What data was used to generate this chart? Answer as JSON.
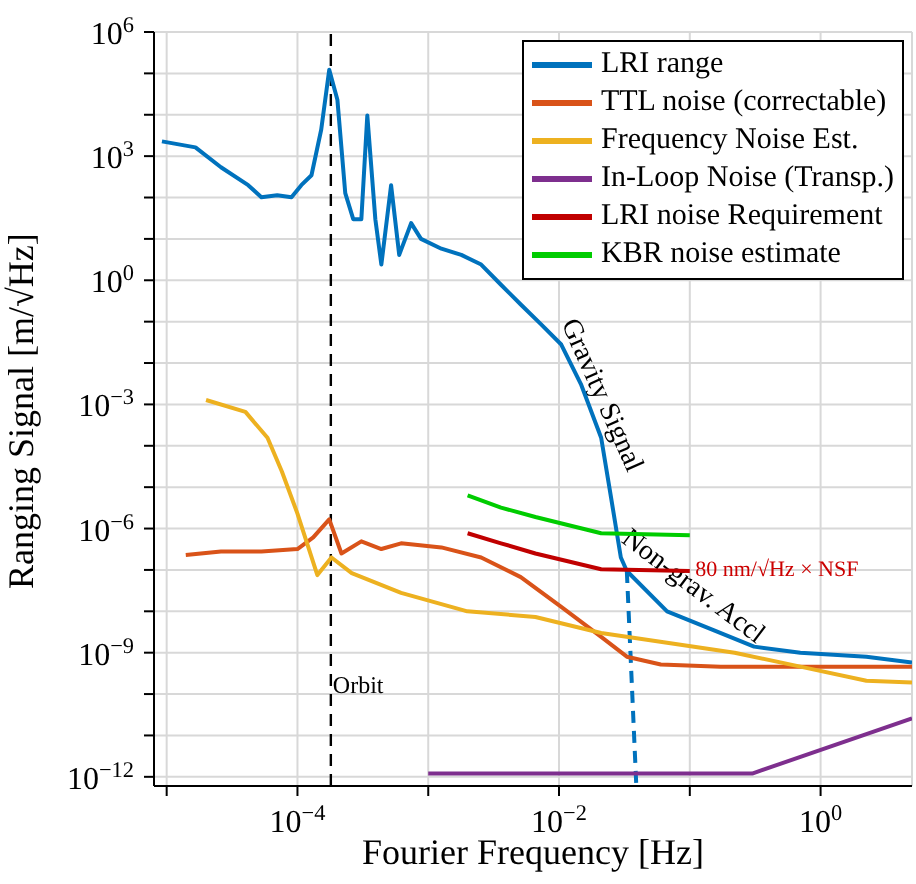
{
  "chart_data": {
    "type": "line",
    "xlabel": "Fourier Frequency [Hz]",
    "ylabel": "Ranging Signal [m/√Hz]",
    "log": "xy",
    "grid": true,
    "legend": "top right",
    "xlim": [
      8e-06,
      5
    ],
    "ylim": [
      6e-13,
      1000000
    ],
    "xticks": [
      {
        "value": 1e-05,
        "label": null
      },
      {
        "value": 0.0001,
        "label": "10$^{−4}$"
      },
      {
        "value": 0.001,
        "label": null
      },
      {
        "value": 0.01,
        "label": "10$^{−2}$"
      },
      {
        "value": 0.1,
        "label": null
      },
      {
        "value": 1,
        "label": "10$^{0}$"
      }
    ],
    "yticks": [
      {
        "value": 1000000,
        "label": "10$^{6}$"
      },
      {
        "value": 100000,
        "label": null
      },
      {
        "value": 10000,
        "label": null
      },
      {
        "value": 1000,
        "label": "10$^{3}$"
      },
      {
        "value": 100,
        "label": null
      },
      {
        "value": 10,
        "label": null
      },
      {
        "value": 1,
        "label": "10$^{0}$"
      },
      {
        "value": 0.1,
        "label": null
      },
      {
        "value": 0.01,
        "label": null
      },
      {
        "value": 0.001,
        "label": "10$^{−3}$"
      },
      {
        "value": 0.0001,
        "label": null
      },
      {
        "value": 1e-05,
        "label": null
      },
      {
        "value": 1e-06,
        "label": "10$^{−6}$"
      },
      {
        "value": 1e-07,
        "label": null
      },
      {
        "value": 1e-08,
        "label": null
      },
      {
        "value": 1e-09,
        "label": "10$^{−9}$"
      },
      {
        "value": 1e-10,
        "label": null
      },
      {
        "value": 1e-11,
        "label": null
      },
      {
        "value": 1e-12,
        "label": "10$^{−12}$"
      }
    ],
    "ref_lines": [
      {
        "axis": "x",
        "value": 0.00018,
        "label": "Orbit",
        "color": "#000000",
        "line_style": "dashed"
      }
    ],
    "annotations": [
      "Gravity Signal",
      "Non-grav. Accl",
      {
        "text": "80 nm/√Hz × NSF",
        "x": 0.11,
        "y": 1e-07
      }
    ],
    "series": [
      {
        "name": "LRI range",
        "color": "#0072bd",
        "x": [
          9.2e-06,
          1.66e-05,
          2.6e-05,
          4.2e-05,
          5.3e-05,
          7e-05,
          9e-05,
          0.000107,
          0.000128,
          0.000152,
          0.000175,
          0.000202,
          0.000232,
          0.000267,
          0.000308,
          0.000342,
          0.000394,
          0.000438,
          0.00052,
          0.0006,
          0.00074,
          0.00088,
          0.00126,
          0.00179,
          0.00254,
          0.0036,
          0.0051,
          0.0073,
          0.0104,
          0.0147,
          0.021,
          0.025,
          0.0297,
          0.033,
          0.067,
          0.155,
          0.31,
          0.7,
          2.24,
          5
        ],
        "values": [
          2270,
          1630,
          540,
          199,
          102,
          114,
          102,
          199,
          345,
          4400,
          122000,
          23000,
          128,
          30,
          30,
          9600,
          30,
          2.4,
          199,
          4.1,
          24,
          10,
          5.8,
          4.1,
          2.4,
          0.78,
          0.26,
          0.086,
          0.028,
          0.0031,
          0.000156,
          5.6e-06,
          2e-07,
          9.4e-08,
          1e-08,
          3.4e-09,
          1.4e-09,
          1e-09,
          8e-10,
          5.8e-10
        ]
      },
      {
        "color": "#0072bd",
        "line_style": "dashed",
        "x": [
          0.033,
          0.039
        ],
        "values": [
          9.4e-08,
          6e-13
        ]
      },
      {
        "name": "TTL noise (correctable)",
        "color": "#d95319",
        "x": [
          1.4e-05,
          2.6e-05,
          5.3e-05,
          0.0001,
          0.000132,
          0.000175,
          0.000217,
          0.000308,
          0.000438,
          0.00062,
          0.00126,
          0.00254,
          0.0051,
          0.0104,
          0.021,
          0.033,
          0.06,
          0.172,
          0.7,
          5
        ],
        "values": [
          2.3e-07,
          2.8e-07,
          2.8e-07,
          3.2e-07,
          6.1e-07,
          1.66e-06,
          2.5e-07,
          4.9e-07,
          3.2e-07,
          4.4e-07,
          3.5e-07,
          2e-07,
          6.7e-08,
          1.28e-08,
          2.4e-09,
          8e-10,
          5.2e-10,
          4.6e-10,
          4.6e-10,
          4.6e-10
        ]
      },
      {
        "name": "Frequency Noise Est.",
        "color": "#edb120",
        "x": [
          2e-05,
          4e-05,
          5.9e-05,
          7.6e-05,
          0.0001,
          0.000142,
          0.000182,
          0.00026,
          0.00062,
          0.00199,
          0.0066,
          0.021,
          0.067,
          0.22,
          0.7,
          2.24,
          5
        ],
        "values": [
          0.00128,
          0.00066,
          0.000156,
          2.4e-05,
          2.3e-06,
          7.5e-08,
          2e-07,
          8.4e-08,
          2.8e-08,
          1e-08,
          7.3e-09,
          3e-09,
          1.74e-09,
          1e-09,
          4.6e-10,
          2.1e-10,
          1.9e-10
        ]
      },
      {
        "name": "In-Loop Noise (Transp.)",
        "color": "#7e2f8e",
        "x": [
          0.001,
          0.3,
          5
        ],
        "values": [
          1.2e-12,
          1.2e-12,
          2.6e-11
        ]
      },
      {
        "name": "LRI noise Requirement",
        "color": "#c00000",
        "x": [
          0.002,
          0.0036,
          0.0066,
          0.021,
          0.1
        ],
        "values": [
          7.7e-07,
          4.4e-07,
          2.5e-07,
          1.04e-07,
          9.4e-08
        ]
      },
      {
        "name": "KBR noise estimate",
        "color": "#00cc00",
        "x": [
          0.002,
          0.0036,
          0.0066,
          0.021,
          0.1
        ],
        "values": [
          6.3e-06,
          3.2e-06,
          1.9e-06,
          7.7e-07,
          6.9e-07
        ]
      }
    ]
  }
}
